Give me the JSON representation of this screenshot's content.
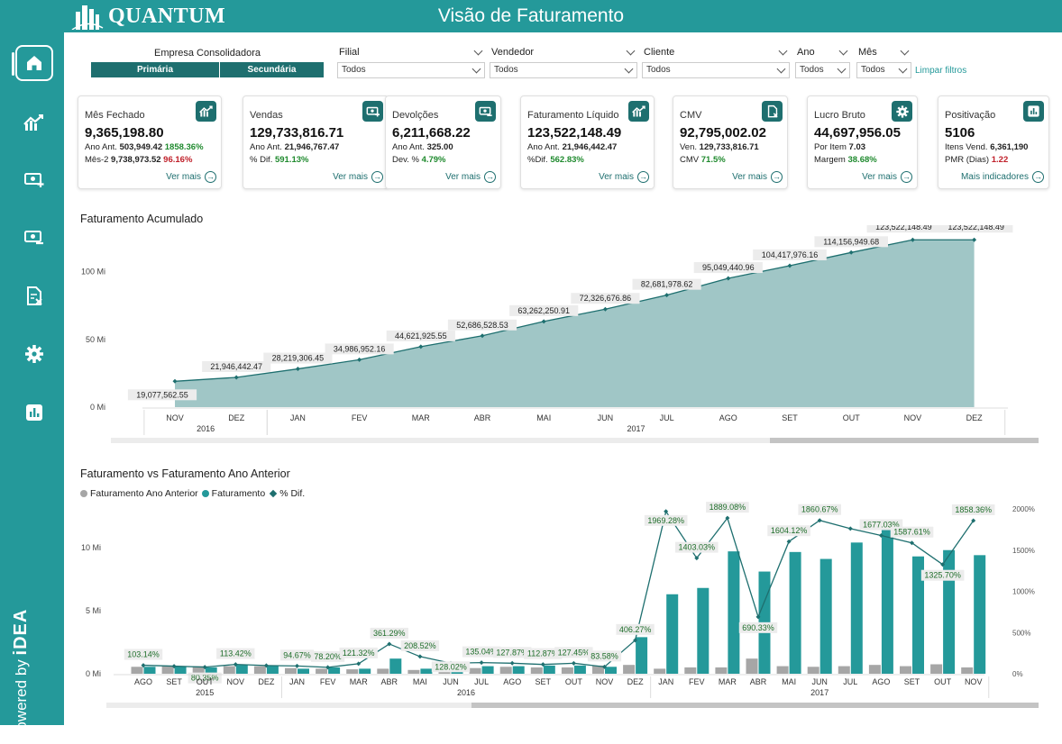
{
  "app": {
    "logo_text": "QUANTUM",
    "title": "Visão de Faturamento",
    "powered_by": "Powered by",
    "powered_brand": "iDEA"
  },
  "sidebar": {
    "items": [
      {
        "icon": "home-icon"
      },
      {
        "icon": "trend-chart-icon"
      },
      {
        "icon": "money-add-icon"
      },
      {
        "icon": "money-minus-icon"
      },
      {
        "icon": "document-x-icon"
      },
      {
        "icon": "gear-icon"
      },
      {
        "icon": "bar-chart-icon"
      }
    ]
  },
  "filters": {
    "empresa_label": "Empresa Consolidadora",
    "primaria": "Primária",
    "secundaria": "Secundária",
    "filial": {
      "label": "Filial",
      "value": "Todos"
    },
    "vendedor": {
      "label": "Vendedor",
      "value": "Todos"
    },
    "cliente": {
      "label": "Cliente",
      "value": "Todos"
    },
    "ano": {
      "label": "Ano",
      "value": "Todos"
    },
    "mes": {
      "label": "Mês",
      "value": "Todos"
    },
    "limpar": "Limpar filtros"
  },
  "kpis": [
    {
      "title": "Mês Fechado",
      "value": "9,365,198.80",
      "l1_label": "Ano Ant.",
      "l1_value": "503,949.42",
      "l1_pct": "1858.36%",
      "l1_pct_class": "pos",
      "l2_label": "Mês-2",
      "l2_value": "9,738,973.52",
      "l2_pct": "96.16%",
      "l2_pct_class": "neg",
      "more": "Ver mais",
      "icon": "trend-chart-icon"
    },
    {
      "title": "Vendas",
      "value": "129,733,816.71",
      "l1_label": "Ano Ant.",
      "l1_value": "21,946,767.47",
      "l2_label": "% Dif.",
      "l2_pct": "591.13%",
      "l2_pct_class": "pos",
      "more": "Ver mais",
      "icon": "money-add-icon"
    },
    {
      "title": "Devolções",
      "value": "6,211,668.22",
      "l1_label": "Ano Ant.",
      "l1_value": "325.00",
      "l2_label": "Dev. %",
      "l2_pct": "4.79%",
      "l2_pct_class": "pos",
      "more": "Ver mais",
      "icon": "money-minus-icon"
    },
    {
      "title": "Faturamento Líquido",
      "value": "123,522,148.49",
      "l1_label": "Ano Ant.",
      "l1_value": "21,946,442.47",
      "l2_label": "%Dif.",
      "l2_pct": "562.83%",
      "l2_pct_class": "pos",
      "more": "Ver mais",
      "icon": "trend-chart-icon"
    },
    {
      "title": "CMV",
      "value": "92,795,002.02",
      "l1_label": "Ven.",
      "l1_value": "129,733,816.71",
      "l2_label": "CMV",
      "l2_pct": "71.5%",
      "l2_pct_class": "pos",
      "more": "Ver mais",
      "icon": "document-x-icon"
    },
    {
      "title": "Lucro Bruto",
      "value": "44,697,956.05",
      "l1_label": "Por Item",
      "l1_value": "7.03",
      "l2_label": "Margem",
      "l2_pct": "38.68%",
      "l2_pct_class": "pos",
      "more": "Ver mais",
      "icon": "gear-icon"
    },
    {
      "title": "Positivação",
      "value": "5106",
      "l1_label": "Itens Vend.",
      "l1_value": "6,361,190",
      "l2_label": "PMR (Dias)",
      "l2_pct": "1.22",
      "l2_pct_class": "neg",
      "more": "Mais indicadores",
      "icon": "bar-chart-icon"
    }
  ],
  "chart_data": [
    {
      "type": "area",
      "title": "Faturamento Acumulado",
      "categories": [
        "NOV",
        "DEZ",
        "JAN",
        "FEV",
        "MAR",
        "ABR",
        "MAI",
        "JUN",
        "JUL",
        "AGO",
        "SET",
        "OUT",
        "NOV",
        "DEZ"
      ],
      "years": [
        {
          "label": "2016",
          "from": 0,
          "to": 1
        },
        {
          "label": "2017",
          "from": 2,
          "to": 13
        }
      ],
      "values": [
        19077562.55,
        21946442.47,
        28219306.45,
        34986952.16,
        44621925.55,
        52686528.53,
        63262250.91,
        72326676.86,
        82681978.62,
        95049440.96,
        104417976.16,
        114156949.68,
        123522148.49,
        123522148.49
      ],
      "labels": [
        "19,077,562.55",
        "21,946,442.47",
        "28,219,306.45",
        "34,986,952.16",
        "44,621,925.55",
        "52,686,528.53",
        "63,262,250.91",
        "72,326,676.86",
        "82,681,978.62",
        "95,049,440.96",
        "104,417,976.16",
        "114,156,949.68",
        "123,522,148.49",
        "123,522,148.49"
      ],
      "ylim": [
        0,
        125000000
      ],
      "yticks": [
        {
          "v": 0,
          "label": "0 Mi"
        },
        {
          "v": 50000000,
          "label": "50 Mi"
        },
        {
          "v": 100000000,
          "label": "100 Mi"
        }
      ],
      "color": "#a0c6c6"
    },
    {
      "type": "bar",
      "title": "Faturamento vs Faturamento Ano Anterior",
      "legend": [
        "Faturamento Ano Anterior",
        "Faturamento",
        "% Dif."
      ],
      "categories": [
        "AGO",
        "SET",
        "OUT",
        "NOV",
        "DEZ",
        "JAN",
        "FEV",
        "MAR",
        "ABR",
        "MAI",
        "JUN",
        "JUL",
        "AGO",
        "SET",
        "OUT",
        "NOV",
        "DEZ",
        "JAN",
        "FEV",
        "MAR",
        "ABR",
        "MAI",
        "JUN",
        "JUL",
        "AGO",
        "SET",
        "OUT",
        "NOV"
      ],
      "years": [
        {
          "label": "2015",
          "from": 0,
          "to": 4
        },
        {
          "label": "2016",
          "from": 5,
          "to": 16
        },
        {
          "label": "2017",
          "from": 17,
          "to": 27
        }
      ],
      "series": [
        {
          "name": "Faturamento Ano Anterior",
          "color": "#a6a6a6",
          "values": [
            0.55,
            0.6,
            0.6,
            0.6,
            0.6,
            0.45,
            0.4,
            0.35,
            0.4,
            0.3,
            0.3,
            0.45,
            0.55,
            0.5,
            0.5,
            0.65,
            0.7,
            0.4,
            0.5,
            0.5,
            1.2,
            0.6,
            0.55,
            0.6,
            0.7,
            0.6,
            0.75,
            0.5
          ]
        },
        {
          "name": "Faturamento",
          "color": "#24999a",
          "values": [
            0.55,
            0.6,
            0.5,
            0.7,
            0.65,
            0.4,
            0.5,
            0.4,
            1.2,
            0.4,
            0.55,
            0.6,
            0.6,
            0.65,
            0.65,
            0.55,
            2.9,
            6.3,
            6.8,
            9.7,
            8.1,
            9.65,
            9.1,
            10.4,
            11.9,
            9.3,
            9.8,
            9.4
          ]
        },
        {
          "name": "% Dif.",
          "color": "#1e6f6f",
          "values": [
            103.14,
            92,
            80.35,
            113.42,
            100,
            94.67,
            78.2,
            121.32,
            361.29,
            208.52,
            128.02,
            135.04,
            127.87,
            112.87,
            127.45,
            83.58,
            406.27,
            1969.28,
            1403.03,
            1889.08,
            690.33,
            1604.12,
            1860.67,
            1761,
            1677.03,
            1587.61,
            1325.7,
            1858.36
          ],
          "labels": [
            "103.14%",
            "",
            "80.35%",
            "113.42%",
            "",
            "94.67%",
            "78.20%",
            "121.32%",
            "361.29%",
            "208.52%",
            "128.02%",
            "135.04%",
            "127.87%",
            "112.87%",
            "127.45%",
            "83.58%",
            "406.27%",
            "1969.28%",
            "1403.03%",
            "1889.08%",
            "690.33%",
            "1604.12%",
            "1860.67%",
            "",
            "1677.03%",
            "1587.61%",
            "1325.70%",
            "1858.36%"
          ]
        }
      ],
      "ylim": [
        0,
        13
      ],
      "yticks": [
        {
          "v": 0,
          "label": "0 Mi"
        },
        {
          "v": 5,
          "label": "5 Mi"
        },
        {
          "v": 10,
          "label": "10 Mi"
        }
      ],
      "y2lim": [
        0,
        2000
      ],
      "y2ticks": [
        {
          "v": 0,
          "label": "0%"
        },
        {
          "v": 500,
          "label": "500%"
        },
        {
          "v": 1000,
          "label": "1000%"
        },
        {
          "v": 1500,
          "label": "1500%"
        },
        {
          "v": 2000,
          "label": "2000%"
        }
      ]
    }
  ]
}
